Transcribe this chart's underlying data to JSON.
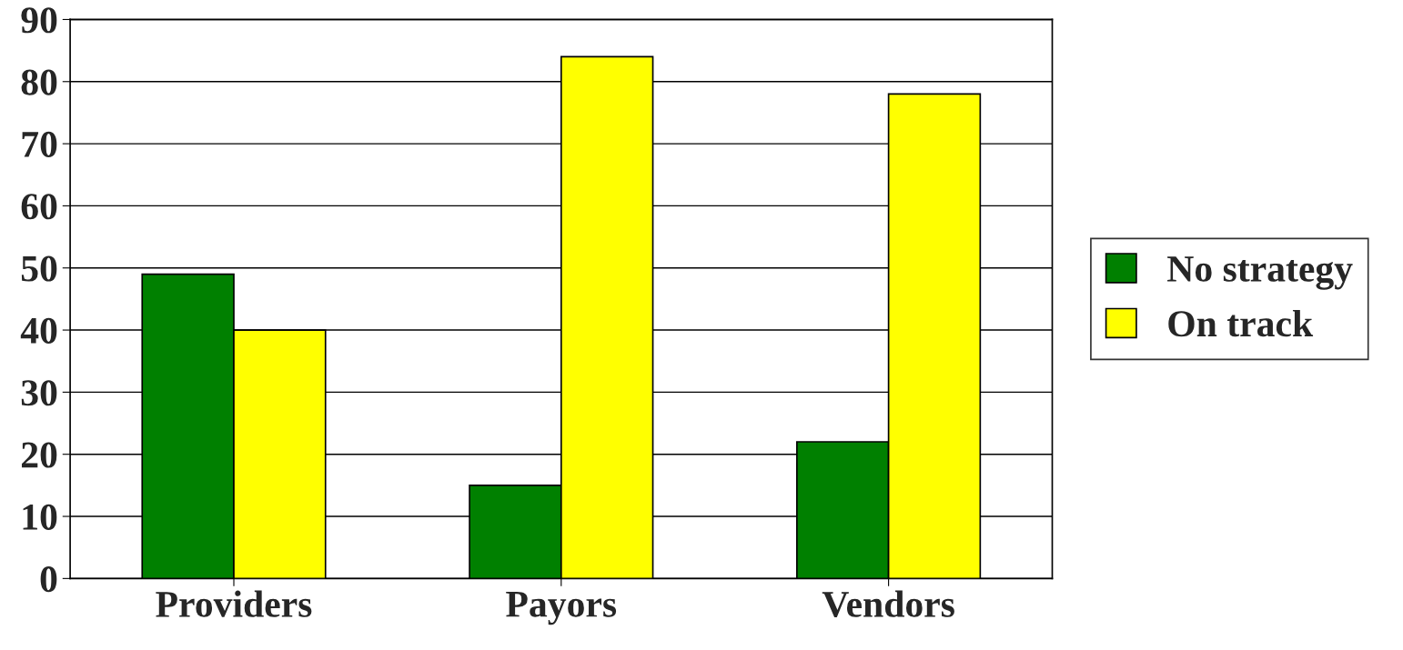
{
  "chart_data": {
    "type": "bar",
    "categories": [
      "Providers",
      "Payors",
      "Vendors"
    ],
    "series": [
      {
        "name": "No strategy",
        "color": "#008000",
        "values": [
          49,
          15,
          22
        ]
      },
      {
        "name": "On track",
        "color": "#ffff00",
        "values": [
          40,
          84,
          78
        ]
      }
    ],
    "ylim": [
      0,
      90
    ],
    "yticks": [
      0,
      10,
      20,
      30,
      40,
      50,
      60,
      70,
      80,
      90
    ],
    "grid": "y",
    "legend": "right"
  }
}
